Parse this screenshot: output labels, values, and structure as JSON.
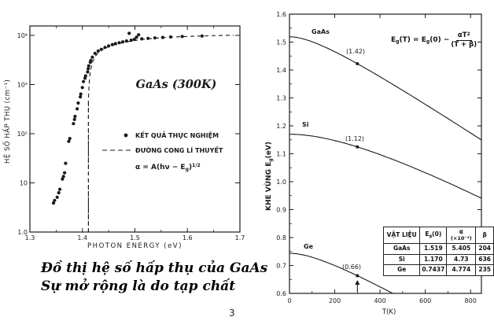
{
  "page": {
    "number": "3",
    "ink_color": "#1a1a1a",
    "background": "#ffffff"
  },
  "caption": {
    "line1": "Đồ thị hệ số hấp thụ của GaAs",
    "line2": "Sự mở rộng là do tạp chất"
  },
  "chart_data": [
    {
      "type": "scatter",
      "title": "GaAs  (300K)",
      "xlabel": "PHOTON ENERGY (eV)",
      "ylabel": "HỆ SỐ HẤP THỤ  (cm⁻¹)",
      "y_scale": "log",
      "xlim": [
        1.3,
        1.7
      ],
      "ylim": [
        1,
        10000
      ],
      "x_ticks": [
        1.3,
        1.4,
        1.5,
        1.6,
        1.7
      ],
      "x_minor_step": 0.05,
      "y_ticks": [
        {
          "v": 10000,
          "label": "10⁴"
        },
        {
          "v": 1000,
          "label": "10³"
        },
        {
          "v": 100,
          "label": "10²"
        },
        {
          "v": 10,
          "label": "10"
        },
        {
          "v": 1,
          "label": "1.0"
        }
      ],
      "series": [
        {
          "name": "KẾT QUẢ THỰC NGHIỆM",
          "style": "points",
          "points": [
            [
              1.345,
              3.9
            ],
            [
              1.347,
              4.4
            ],
            [
              1.352,
              5.1
            ],
            [
              1.355,
              6.3
            ],
            [
              1.357,
              7.4
            ],
            [
              1.362,
              12
            ],
            [
              1.364,
              13.5
            ],
            [
              1.366,
              16
            ],
            [
              1.368,
              25
            ],
            [
              1.374,
              70
            ],
            [
              1.376,
              80
            ],
            [
              1.383,
              160
            ],
            [
              1.385,
              195
            ],
            [
              1.386,
              225
            ],
            [
              1.39,
              320
            ],
            [
              1.392,
              420
            ],
            [
              1.396,
              560
            ],
            [
              1.397,
              640
            ],
            [
              1.4,
              870
            ],
            [
              1.402,
              1150
            ],
            [
              1.405,
              1350
            ],
            [
              1.406,
              1500
            ],
            [
              1.41,
              1800
            ],
            [
              1.411,
              2100
            ],
            [
              1.412,
              2400
            ],
            [
              1.415,
              2850
            ],
            [
              1.416,
              3100
            ],
            [
              1.419,
              3600
            ],
            [
              1.424,
              4300
            ],
            [
              1.43,
              4800
            ],
            [
              1.436,
              5200
            ],
            [
              1.443,
              5700
            ],
            [
              1.45,
              6100
            ],
            [
              1.457,
              6500
            ],
            [
              1.463,
              6800
            ],
            [
              1.47,
              7100
            ],
            [
              1.477,
              7400
            ],
            [
              1.484,
              7700
            ],
            [
              1.489,
              11000
            ],
            [
              1.493,
              8000
            ],
            [
              1.499,
              8300
            ],
            [
              1.503,
              9200
            ],
            [
              1.507,
              10300
            ],
            [
              1.513,
              8500
            ],
            [
              1.525,
              8700
            ],
            [
              1.538,
              8900
            ],
            [
              1.553,
              9100
            ],
            [
              1.568,
              9300
            ],
            [
              1.59,
              9500
            ],
            [
              1.628,
              9700
            ]
          ]
        },
        {
          "name": "ĐƯỜNG CONG LÍ THUYẾT",
          "style": "dashed",
          "equation_rich": [
            {
              "t": "α = A(hν − E"
            },
            {
              "t": "g",
              "s": "sub"
            },
            {
              "t": ")"
            },
            {
              "t": "1/2",
              "s": "sup"
            }
          ],
          "eg_asymptote_ev": 1.4115,
          "curve": [
            [
              1.4115,
              1
            ],
            [
              1.4115,
              500
            ],
            [
              1.4125,
              900
            ],
            [
              1.414,
              1500
            ],
            [
              1.4165,
              2200
            ],
            [
              1.42,
              3000
            ],
            [
              1.425,
              3800
            ],
            [
              1.431,
              4500
            ],
            [
              1.44,
              5300
            ],
            [
              1.452,
              6000
            ],
            [
              1.466,
              6700
            ],
            [
              1.482,
              7300
            ],
            [
              1.5,
              7900
            ],
            [
              1.52,
              8400
            ],
            [
              1.545,
              8900
            ],
            [
              1.575,
              9300
            ],
            [
              1.61,
              9600
            ],
            [
              1.65,
              9900
            ],
            [
              1.688,
              10100
            ]
          ]
        }
      ]
    },
    {
      "type": "line",
      "xlabel": "T(K)",
      "ylabel_rich": [
        {
          "t": "KHE VÙNG    E"
        },
        {
          "t": "g",
          "s": "sub"
        },
        {
          "t": "(eV)"
        }
      ],
      "xlim": [
        0,
        848
      ],
      "ylim": [
        0.6,
        1.6
      ],
      "x_ticks": [
        0,
        200,
        400,
        600,
        800
      ],
      "x_minor": [
        100,
        300,
        500,
        700
      ],
      "y_ticks": [
        {
          "v": 1.6,
          "label": "1.6"
        },
        {
          "v": 1.5,
          "label": "1.5"
        },
        {
          "v": 1.4,
          "label": "1.4"
        },
        {
          "v": 1.3,
          "label": "1.3"
        },
        {
          "v": 1.2,
          "label": "1.2"
        },
        {
          "v": 1.1,
          "label": "1.1"
        },
        {
          "v": 1.0,
          "label": "1.0"
        },
        {
          "v": 0.9,
          "label": "0.9"
        },
        {
          "v": 0.8,
          "label": "0.8"
        },
        {
          "v": 0.7,
          "label": "0.7"
        },
        {
          "v": 0.6,
          "label": "0.6"
        }
      ],
      "equation": {
        "lhs_rich": [
          {
            "t": "E"
          },
          {
            "t": "g",
            "s": "sub"
          },
          {
            "t": "(T) = E"
          },
          {
            "t": "g",
            "s": "sub"
          },
          {
            "t": "(0) − "
          }
        ],
        "num_rich": [
          {
            "t": "αT"
          },
          {
            "t": "2",
            "s": "sup"
          }
        ],
        "den": "(T + β)"
      },
      "series": [
        {
          "name": "GaAs",
          "Eg0": 1.519,
          "alpha_x1e4": 5.405,
          "beta": 204,
          "label_point": {
            "T": 300,
            "value": 1.42,
            "label": "(1.42)"
          }
        },
        {
          "name": "Si",
          "Eg0": 1.17,
          "alpha_x1e4": 4.73,
          "beta": 636,
          "label_point": {
            "T": 300,
            "value": 1.12,
            "label": "(1.12)"
          }
        },
        {
          "name": "Ge",
          "Eg0": 0.7437,
          "alpha_x1e4": 4.774,
          "beta": 235,
          "label_point": {
            "T": 300,
            "value": 0.66,
            "label": "(0.66)"
          }
        }
      ],
      "annotation_arrow_T": 300,
      "table": {
        "material_header": "VẬT LIỆU",
        "eg0_header_rich": [
          {
            "t": "E"
          },
          {
            "t": "g",
            "s": "sub"
          },
          {
            "t": "(0)"
          }
        ],
        "alpha_header_line1": "α",
        "alpha_header_line2": "(×10⁻⁴)",
        "beta_header": "β",
        "rows": [
          [
            "GaAs",
            "1.519",
            "5.405",
            "204"
          ],
          [
            "Si",
            "1.170",
            "4.73",
            "636"
          ],
          [
            "Ge",
            "0.7437",
            "4.774",
            "235"
          ]
        ]
      }
    }
  ]
}
